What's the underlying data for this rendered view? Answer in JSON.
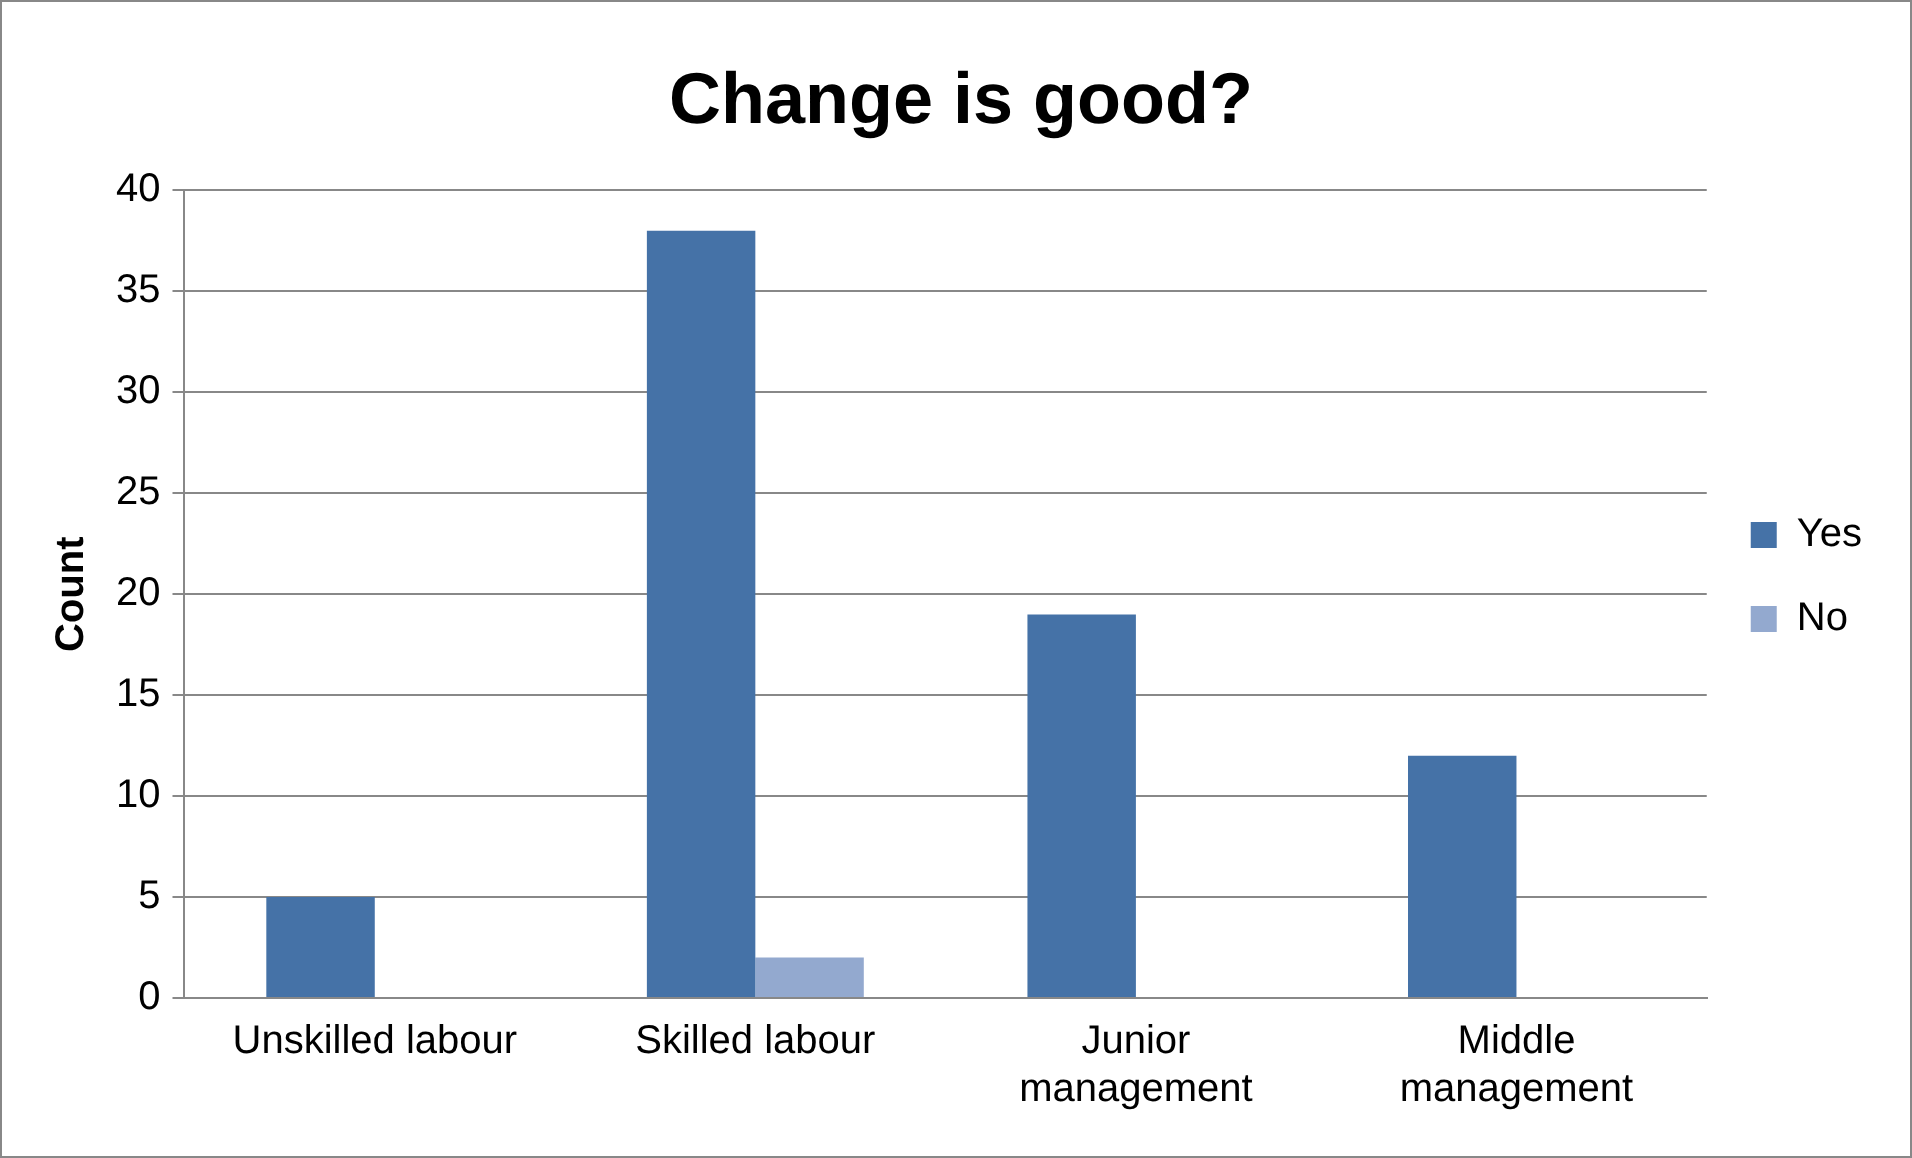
{
  "chart_data": {
    "type": "bar",
    "title": "Change is good?",
    "ylabel": "Count",
    "categories": [
      "Unskilled labour",
      "Skilled labour",
      "Junior management",
      "Middle management"
    ],
    "series": [
      {
        "name": "Yes",
        "color": "#4572a7",
        "values": [
          5,
          38,
          19,
          12
        ]
      },
      {
        "name": "No",
        "color": "#93a9cf",
        "values": [
          0,
          2,
          0,
          0
        ]
      }
    ],
    "ylim": [
      0,
      40
    ],
    "yticks": [
      0,
      5,
      10,
      15,
      20,
      25,
      30,
      35,
      40
    ],
    "grid": "y",
    "legend": "right"
  }
}
